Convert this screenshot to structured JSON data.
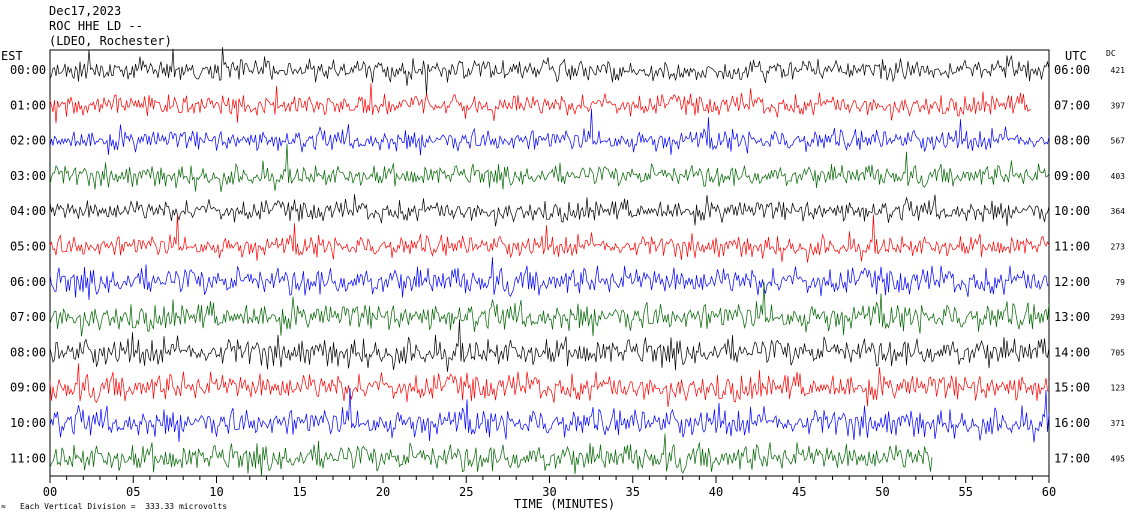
{
  "header": {
    "date": "Dec17,2023",
    "station": "ROC HHE LD --",
    "location": "(LDEO, Rochester)"
  },
  "left_label": "EST",
  "right_label": "UTC",
  "dc_label": "DC",
  "xlabel": "TIME (MINUTES)",
  "footnote": "Each Vertical Division =  333.33 microvolts",
  "chart_data": {
    "type": "line",
    "title": "",
    "xlabel": "TIME (MINUTES)",
    "xlim": [
      0,
      60
    ],
    "x_ticks": [
      "00",
      "05",
      "10",
      "15",
      "20",
      "25",
      "30",
      "35",
      "40",
      "45",
      "50",
      "55",
      "60"
    ],
    "est_hours": [
      "00:00",
      "01:00",
      "02:00",
      "03:00",
      "04:00",
      "05:00",
      "06:00",
      "07:00",
      "08:00",
      "09:00",
      "10:00",
      "11:00"
    ],
    "utc_hours": [
      "06:00",
      "07:00",
      "08:00",
      "09:00",
      "10:00",
      "11:00",
      "12:00",
      "13:00",
      "14:00",
      "15:00",
      "16:00",
      "17:00"
    ],
    "dc_offsets": [
      "421",
      "397",
      "567",
      "403",
      "364",
      "273",
      "79",
      "293",
      "705",
      "123",
      "371",
      "495"
    ],
    "trace_colors": [
      "#000000",
      "#ff0000",
      "#0000ff",
      "#006400",
      "#000000",
      "#ff0000",
      "#0000ff",
      "#006400",
      "#000000",
      "#ff0000",
      "#0000ff",
      "#006400"
    ],
    "trace_end_minute": [
      60,
      59,
      60,
      60,
      60,
      60,
      60,
      60,
      60,
      60,
      60,
      53
    ],
    "grid": false
  }
}
